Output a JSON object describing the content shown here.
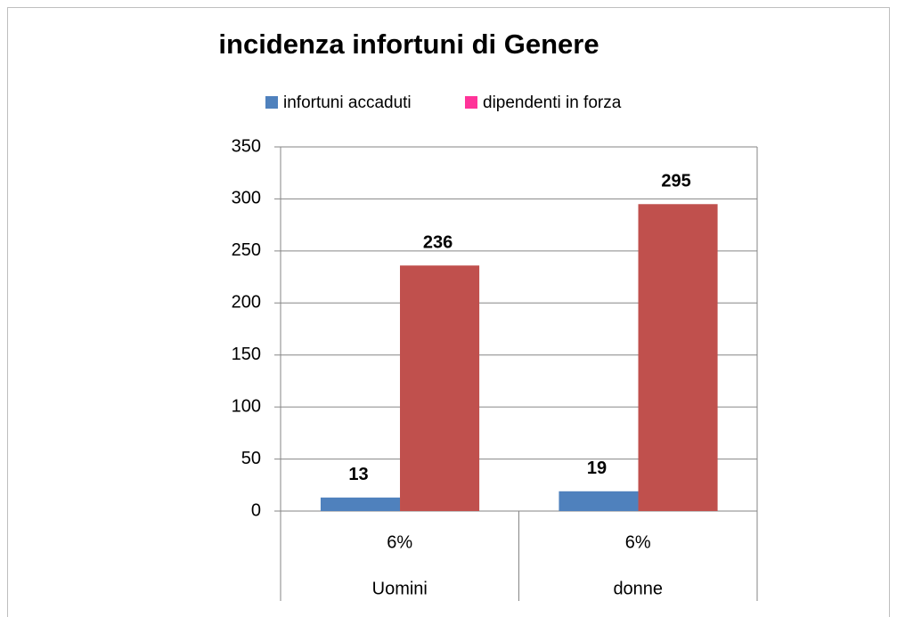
{
  "chart_data": {
    "type": "bar",
    "title": "incidenza infortuni di Genere",
    "categories": [
      "Uomini",
      "donne"
    ],
    "sublabels": [
      "6%",
      "6%"
    ],
    "series": [
      {
        "name": "infortuni accaduti",
        "color": "#4f81bd",
        "legend_color": "#4f81bd",
        "values": [
          13,
          19
        ]
      },
      {
        "name": "dipendenti in forza",
        "color": "#c0504d",
        "legend_color": "#ff3399",
        "values": [
          236,
          295
        ]
      }
    ],
    "ylim": [
      0,
      350
    ],
    "yticks": [
      0,
      50,
      100,
      150,
      200,
      250,
      300,
      350
    ],
    "grid": true,
    "legend": "top"
  }
}
